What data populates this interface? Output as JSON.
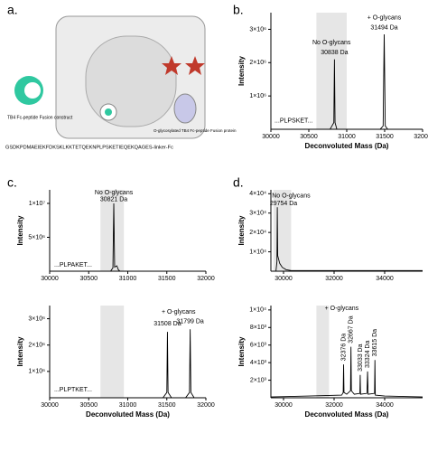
{
  "panel_labels": [
    "a.",
    "b.",
    "c.",
    "d."
  ],
  "diagram": {
    "construct_label": "TB4 Fc-peptide Fusion construct",
    "protein_label": "O-glycosylated TB4 Fc-peptide Fusion protein",
    "sequence": "GSDKPDMAEIEKFDKSKLKKTETQEKNPLPSKETIEQEKQAGES-linker-Fc"
  },
  "chart_data": [
    {
      "type": "line",
      "color": "#000000",
      "x_label": "Deconvoluted Mass (Da)",
      "y_label": "Intensity",
      "xlim": [
        30000,
        32000
      ],
      "xticks": [
        30000,
        30500,
        31000,
        31500,
        32000
      ],
      "ylim": [
        0,
        3500000
      ],
      "yticks": [
        {
          "value": 1000000,
          "label": "1×10⁶"
        },
        {
          "value": 2000000,
          "label": "2×10⁶"
        },
        {
          "value": 3000000,
          "label": "3×10⁶"
        }
      ],
      "highlight": [
        30600,
        31000
      ],
      "x": [
        30000,
        30780,
        30800,
        30830,
        30838,
        30846,
        30870,
        31440,
        31480,
        31494,
        31508,
        31540,
        32000
      ],
      "values": [
        0,
        0,
        80000,
        200000,
        2100000,
        200000,
        0,
        0,
        100000,
        2850000,
        100000,
        0,
        0
      ],
      "annotations": [
        {
          "text": "No O-glycans",
          "x": 30800,
          "y": 2600000
        },
        {
          "text": "30838 Da",
          "x": 30838,
          "y": 2300000
        },
        {
          "text": "+ O-glycans",
          "x": 31494,
          "y": 3350000
        },
        {
          "text": "31494 Da",
          "x": 31494,
          "y": 3050000
        },
        {
          "text": "...PLPSKET...",
          "x": 30300,
          "y": 250000
        }
      ]
    },
    {
      "type": "line",
      "color": "#000000",
      "y_label": "Intensity",
      "xlim": [
        30000,
        32000
      ],
      "xticks": [
        30000,
        30500,
        31000,
        31500,
        32000
      ],
      "ylim": [
        0,
        12000000
      ],
      "yticks": [
        {
          "value": 5000000,
          "label": "5×10⁶"
        },
        {
          "value": 10000000,
          "label": "1×10⁷"
        }
      ],
      "highlight": [
        30650,
        30950
      ],
      "x": [
        30000,
        30780,
        30810,
        30821,
        30832,
        30860,
        30880,
        30900,
        32000
      ],
      "values": [
        0,
        0,
        500000,
        10000000,
        600000,
        800000,
        200000,
        0,
        0
      ],
      "annotations": [
        {
          "text": "No O-glycans",
          "x": 30821,
          "y": 11600000
        },
        {
          "text": "30821 Da",
          "x": 30821,
          "y": 10600000
        },
        {
          "text": "...PLPAKET...",
          "x": 30300,
          "y": 900000
        }
      ]
    },
    {
      "type": "line",
      "color": "#000000",
      "x_label": "Deconvoluted Mass (Da)",
      "y_label": "Intensity",
      "xlim": [
        30000,
        32000
      ],
      "xticks": [
        30000,
        30500,
        31000,
        31500,
        32000
      ],
      "ylim": [
        0,
        3500000
      ],
      "yticks": [
        {
          "value": 1000000,
          "label": "1×10⁶"
        },
        {
          "value": 2000000,
          "label": "2×10⁶"
        },
        {
          "value": 3000000,
          "label": "3×10⁶"
        }
      ],
      "highlight": [
        30650,
        30950
      ],
      "x": [
        30000,
        31450,
        31500,
        31508,
        31516,
        31560,
        31740,
        31790,
        31799,
        31808,
        31850,
        32000
      ],
      "values": [
        0,
        0,
        200000,
        2500000,
        200000,
        0,
        0,
        200000,
        2600000,
        200000,
        0,
        0
      ],
      "annotations": [
        {
          "text": "+ O-glycans",
          "x": 31650,
          "y": 3250000
        },
        {
          "text": "31508 Da",
          "x": 31508,
          "y": 2800000
        },
        {
          "text": "31799 Da",
          "x": 31799,
          "y": 2900000
        },
        {
          "text": "...PLPTKET...",
          "x": 30300,
          "y": 300000
        }
      ]
    },
    {
      "type": "line",
      "color": "#000000",
      "y_label": "Intensity",
      "xlim": [
        29500,
        35500
      ],
      "xticks": [
        30000,
        32000,
        34000
      ],
      "ylim": [
        0,
        42000
      ],
      "yticks": [
        {
          "value": 10000,
          "label": "1×10⁴"
        },
        {
          "value": 20000,
          "label": "2×10⁴"
        },
        {
          "value": 30000,
          "label": "3×10⁴"
        },
        {
          "value": 40000,
          "label": "4×10⁴"
        }
      ],
      "highlight": [
        29600,
        30300
      ],
      "x": [
        29500,
        29700,
        29740,
        29754,
        29770,
        29850,
        29950,
        30100,
        30300,
        35500
      ],
      "values": [
        0,
        0,
        5000,
        33000,
        8000,
        4000,
        2000,
        800,
        300,
        300
      ],
      "annotations": [
        {
          "text": "No O-glycans",
          "x": 30300,
          "y": 39000
        },
        {
          "text": "29754 Da",
          "x": 30000,
          "y": 35000
        }
      ]
    },
    {
      "type": "line",
      "color": "#000000",
      "x_label": "Deconvoluted Mass (Da)",
      "y_label": "Intensity",
      "vertical_peak_labels": true,
      "xlim": [
        29500,
        35500
      ],
      "xticks": [
        30000,
        32000,
        34000
      ],
      "ylim": [
        0,
        10500
      ],
      "yticks": [
        {
          "value": 2000,
          "label": "2×10³"
        },
        {
          "value": 4000,
          "label": "4×10³"
        },
        {
          "value": 6000,
          "label": "6×10³"
        },
        {
          "value": 8000,
          "label": "8×10³"
        },
        {
          "value": 10000,
          "label": "1×10⁴"
        }
      ],
      "highlight": [
        31300,
        31800
      ],
      "x": [
        29500,
        31000,
        32300,
        32360,
        32376,
        32392,
        32500,
        32650,
        32667,
        32684,
        32800,
        33020,
        33033,
        33046,
        33300,
        33324,
        33348,
        33600,
        33615,
        33630,
        34000,
        35500
      ],
      "values": [
        100,
        200,
        300,
        600,
        3800,
        600,
        400,
        800,
        5800,
        800,
        400,
        500,
        2600,
        400,
        500,
        3000,
        400,
        500,
        4300,
        300,
        200,
        100
      ],
      "annotations": [
        {
          "text": "+ O-glycans",
          "x": 32300,
          "y": 10200
        }
      ],
      "peak_labels": [
        {
          "text": "32376 Da",
          "x": 32376,
          "y": 4200
        },
        {
          "text": "32667 Da",
          "x": 32667,
          "y": 6200
        },
        {
          "text": "33033 Da",
          "x": 33033,
          "y": 3000
        },
        {
          "text": "33324 Da",
          "x": 33324,
          "y": 3400
        },
        {
          "text": "33615 Da",
          "x": 33615,
          "y": 4700
        }
      ]
    }
  ]
}
